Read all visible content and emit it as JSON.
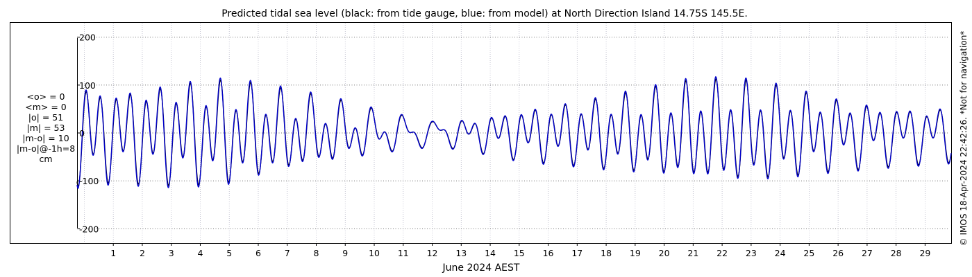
{
  "chart_data": {
    "type": "line",
    "title": "Predicted tidal sea level (black: from tide gauge, blue: from model) at North Direction Island 14.75S 145.5E.",
    "xlabel": "June 2024 AEST",
    "ylabel": "",
    "ylim": [
      -230,
      230
    ],
    "xlim": [
      -0.25,
      29.9
    ],
    "yticks": [
      -200,
      -100,
      0,
      100,
      200
    ],
    "xticks": [
      1,
      2,
      3,
      4,
      5,
      6,
      7,
      8,
      9,
      10,
      11,
      12,
      13,
      14,
      15,
      16,
      17,
      18,
      19,
      20,
      21,
      22,
      23,
      24,
      25,
      26,
      27,
      28,
      29
    ],
    "grid": true,
    "series": [
      {
        "name": "from tide gauge",
        "color": "#000000",
        "tide_model": {
          "t_start": -0.25,
          "t_end": 29.9,
          "semidiurnal_period_days": 0.5175,
          "semidiurnal_amplitude_by_day": [
            [
              0,
              80
            ],
            [
              1,
              70
            ],
            [
              3.5,
              80
            ],
            [
              5,
              80
            ],
            [
              7,
              62
            ],
            [
              9,
              40
            ],
            [
              10.5,
              20
            ],
            [
              12,
              8
            ],
            [
              13.5,
              22
            ],
            [
              15,
              38
            ],
            [
              17,
              50
            ],
            [
              19,
              62
            ],
            [
              21,
              78
            ],
            [
              22.5,
              80
            ],
            [
              24,
              72
            ],
            [
              26,
              52
            ],
            [
              28,
              40
            ],
            [
              29.9,
              36
            ]
          ],
          "diurnal_period_days": 1.0758,
          "diurnal_amplitude_by_day": [
            [
              0,
              32
            ],
            [
              3,
              36
            ],
            [
              5,
              38
            ],
            [
              7,
              30
            ],
            [
              9,
              28
            ],
            [
              11,
              26
            ],
            [
              13,
              18
            ],
            [
              15,
              20
            ],
            [
              17,
              22
            ],
            [
              19,
              30
            ],
            [
              21,
              34
            ],
            [
              23,
              34
            ],
            [
              25,
              30
            ],
            [
              27,
              30
            ],
            [
              29.9,
              28
            ]
          ]
        }
      },
      {
        "name": "from model",
        "color": "#0000cc"
      }
    ]
  },
  "stats": [
    "<o> = 0",
    "<m> = 0",
    "|o| = 51",
    "|m| = 53",
    "|m-o| = 10",
    "|m-o|@-1h=8",
    "cm"
  ],
  "side_note": "© IMOS 18-Apr-2024 22:42:26. *Not for navigation*"
}
